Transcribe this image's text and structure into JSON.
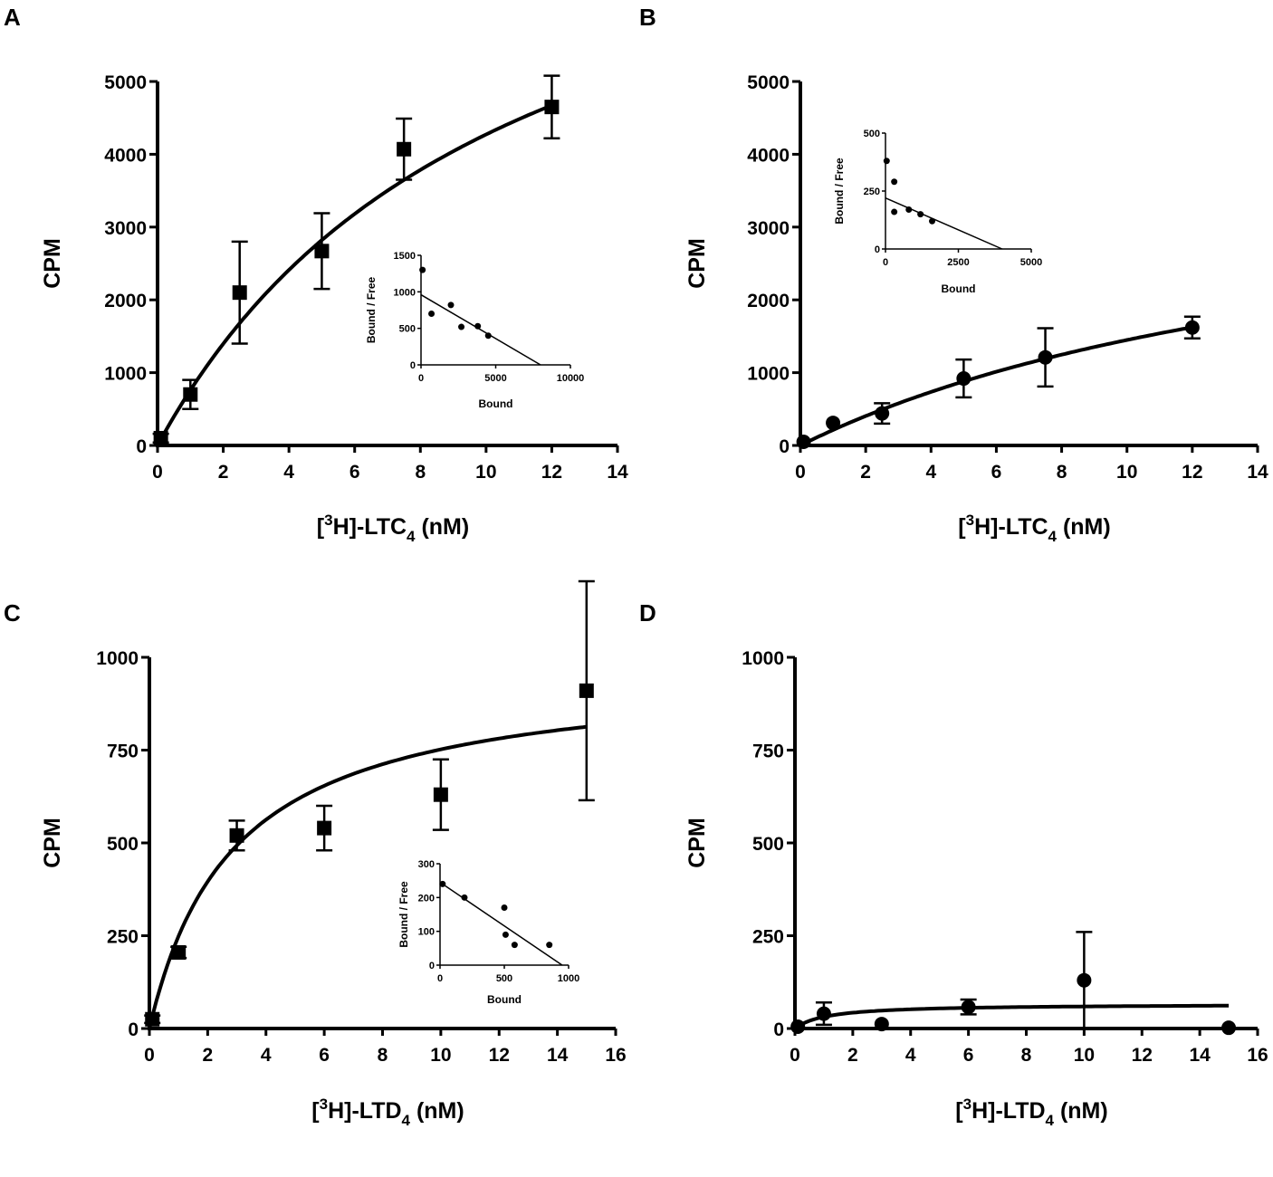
{
  "chart_data": [
    {
      "panel": "A",
      "type": "scatter",
      "marker": "square",
      "xlabel": {
        "pre": "[",
        "sup": "3",
        "mid": "H]-LTC",
        "sub": "4",
        "post": " (nM)"
      },
      "ylabel": "CPM",
      "xlim": [
        0,
        14
      ],
      "ylim": [
        0,
        5000
      ],
      "xticks": [
        0,
        2,
        4,
        6,
        8,
        10,
        12,
        14
      ],
      "yticks": [
        0,
        1000,
        2000,
        3000,
        4000,
        5000
      ],
      "points": [
        {
          "x": 0.1,
          "y": 100,
          "err": 60
        },
        {
          "x": 1,
          "y": 700,
          "err": 200
        },
        {
          "x": 2.5,
          "y": 2100,
          "err": 700
        },
        {
          "x": 5,
          "y": 2670,
          "err": 520
        },
        {
          "x": 7.5,
          "y": 4070,
          "err": 420
        },
        {
          "x": 12,
          "y": 4650,
          "err": 430
        }
      ],
      "fit": {
        "bmax": 8800,
        "kd": 10.6,
        "x_end": 12
      },
      "inset": {
        "xlabel": "Bound",
        "ylabel": "Bound / Free",
        "xlim": [
          0,
          10000
        ],
        "ylim": [
          0,
          1500
        ],
        "xticks": [
          0,
          5000,
          10000
        ],
        "yticks": [
          0,
          500,
          1000,
          1500
        ],
        "points": [
          [
            100,
            1300
          ],
          [
            700,
            700
          ],
          [
            2000,
            820
          ],
          [
            2700,
            520
          ],
          [
            3800,
            530
          ],
          [
            4500,
            400
          ]
        ],
        "line": [
          [
            0,
            960
          ],
          [
            8000,
            0
          ]
        ]
      }
    },
    {
      "panel": "B",
      "type": "scatter",
      "marker": "circle",
      "xlabel": {
        "pre": "[",
        "sup": "3",
        "mid": "H]-LTC",
        "sub": "4",
        "post": " (nM)"
      },
      "ylabel": "CPM",
      "xlim": [
        0,
        14
      ],
      "ylim": [
        0,
        5000
      ],
      "xticks": [
        0,
        2,
        4,
        6,
        8,
        10,
        12,
        14
      ],
      "yticks": [
        0,
        1000,
        2000,
        3000,
        4000,
        5000
      ],
      "points": [
        {
          "x": 0.1,
          "y": 50,
          "err": 0
        },
        {
          "x": 1,
          "y": 310,
          "err": 0
        },
        {
          "x": 2.5,
          "y": 440,
          "err": 140
        },
        {
          "x": 5,
          "y": 920,
          "err": 260
        },
        {
          "x": 7.5,
          "y": 1210,
          "err": 400
        },
        {
          "x": 12,
          "y": 1620,
          "err": 150
        }
      ],
      "fit": {
        "bmax": 4100,
        "kd": 18.3,
        "x_end": 12
      },
      "inset": {
        "xlabel": "Bound",
        "ylabel": "Bound / Free",
        "xlim": [
          0,
          5000
        ],
        "ylim": [
          0,
          500
        ],
        "xticks": [
          0,
          2500,
          5000
        ],
        "yticks": [
          0,
          250,
          500
        ],
        "points": [
          [
            40,
            380
          ],
          [
            300,
            290
          ],
          [
            300,
            160
          ],
          [
            800,
            170
          ],
          [
            1200,
            150
          ],
          [
            1600,
            120
          ]
        ],
        "line": [
          [
            0,
            220
          ],
          [
            4000,
            0
          ]
        ]
      }
    },
    {
      "panel": "C",
      "type": "scatter",
      "marker": "square",
      "xlabel": {
        "pre": "[",
        "sup": "3",
        "mid": "H]-LTD",
        "sub": "4",
        "post": " (nM)"
      },
      "ylabel": "CPM",
      "xlim": [
        0,
        16
      ],
      "ylim": [
        0,
        1000
      ],
      "xticks": [
        0,
        2,
        4,
        6,
        8,
        10,
        12,
        14,
        16
      ],
      "yticks": [
        0,
        250,
        500,
        750,
        1000
      ],
      "points": [
        {
          "x": 0.1,
          "y": 25,
          "err": 10
        },
        {
          "x": 1,
          "y": 205,
          "err": 15
        },
        {
          "x": 3,
          "y": 520,
          "err": 40
        },
        {
          "x": 6,
          "y": 540,
          "err": 60
        },
        {
          "x": 10,
          "y": 630,
          "err": 95
        },
        {
          "x": 15,
          "y": 910,
          "err": 295
        }
      ],
      "fit": {
        "bmax": 970,
        "kd": 2.9,
        "x_end": 15
      },
      "inset": {
        "xlabel": "Bound",
        "ylabel": "Bound / Free",
        "xlim": [
          0,
          1000
        ],
        "ylim": [
          0,
          300
        ],
        "xticks": [
          0,
          500,
          1000
        ],
        "yticks": [
          0,
          100,
          200,
          300
        ],
        "points": [
          [
            20,
            240
          ],
          [
            190,
            200
          ],
          [
            500,
            170
          ],
          [
            510,
            90
          ],
          [
            580,
            60
          ],
          [
            850,
            60
          ]
        ],
        "line": [
          [
            0,
            245
          ],
          [
            950,
            0
          ]
        ]
      }
    },
    {
      "panel": "D",
      "type": "scatter",
      "marker": "circle",
      "xlabel": {
        "pre": "[",
        "sup": "3",
        "mid": "H]-LTD",
        "sub": "4",
        "post": " (nM)"
      },
      "ylabel": "CPM",
      "xlim": [
        0,
        16
      ],
      "ylim": [
        0,
        1000
      ],
      "xticks": [
        0,
        2,
        4,
        6,
        8,
        10,
        12,
        14,
        16
      ],
      "yticks": [
        0,
        250,
        500,
        750,
        1000
      ],
      "points": [
        {
          "x": 0.1,
          "y": 5,
          "err": 0
        },
        {
          "x": 1,
          "y": 40,
          "err": 30
        },
        {
          "x": 3,
          "y": 12,
          "err": 0
        },
        {
          "x": 6,
          "y": 58,
          "err": 20
        },
        {
          "x": 10,
          "y": 130,
          "err": 130
        },
        {
          "x": 15,
          "y": 2,
          "err": 0
        }
      ],
      "fit": {
        "bmax": 66,
        "kd": 1.1,
        "x_end": 15
      }
    }
  ]
}
